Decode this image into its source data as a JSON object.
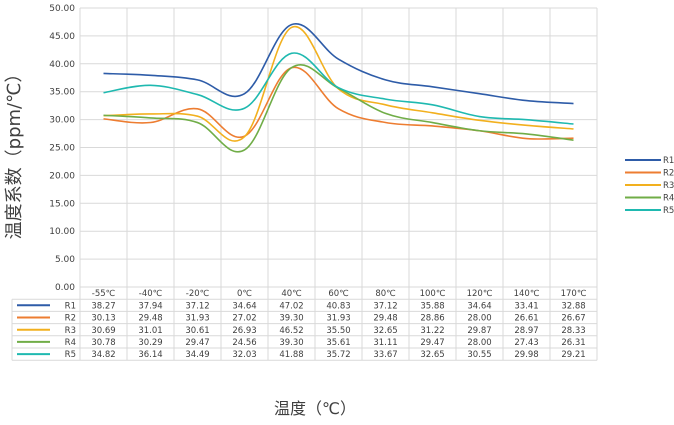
{
  "chart_data": {
    "type": "line",
    "xlabel": "温度（℃）",
    "ylabel": "温度系数（ppm/℃）",
    "categories": [
      "-55℃",
      "-40℃",
      "-20℃",
      "0℃",
      "40℃",
      "60℃",
      "80℃",
      "100℃",
      "120℃",
      "140℃",
      "170℃"
    ],
    "ylim": [
      0,
      50
    ],
    "yticks": [
      "0.00",
      "5.00",
      "10.00",
      "15.00",
      "20.00",
      "25.00",
      "30.00",
      "35.00",
      "40.00",
      "45.00",
      "50.00"
    ],
    "grid": true,
    "legend_position": "right",
    "series": [
      {
        "name": "R1",
        "color": "#2e5ca8",
        "values": [
          38.27,
          37.94,
          37.12,
          34.64,
          47.02,
          40.83,
          37.12,
          35.88,
          34.64,
          33.41,
          32.88
        ]
      },
      {
        "name": "R2",
        "color": "#ed7d31",
        "values": [
          30.13,
          29.48,
          31.93,
          27.02,
          39.3,
          31.93,
          29.48,
          28.86,
          28.0,
          26.61,
          26.67
        ]
      },
      {
        "name": "R3",
        "color": "#f2b01e",
        "values": [
          30.69,
          31.01,
          30.61,
          26.93,
          46.52,
          35.5,
          32.65,
          31.22,
          29.87,
          28.97,
          28.33
        ]
      },
      {
        "name": "R4",
        "color": "#70ad47",
        "values": [
          30.78,
          30.29,
          29.47,
          24.56,
          39.3,
          35.61,
          31.11,
          29.47,
          28.0,
          27.43,
          26.31
        ]
      },
      {
        "name": "R5",
        "color": "#1fb9b0",
        "values": [
          34.82,
          36.14,
          34.49,
          32.03,
          41.88,
          35.72,
          33.67,
          32.65,
          30.55,
          29.98,
          29.21
        ]
      }
    ],
    "table_values": [
      [
        "38.27",
        "37.94",
        "37.12",
        "34.64",
        "47.02",
        "40.83",
        "37.12",
        "35.88",
        "34.64",
        "33.41",
        "32.88"
      ],
      [
        "30.13",
        "29.48",
        "31.93",
        "27.02",
        "39.30",
        "31.93",
        "29.48",
        "28.86",
        "28.00",
        "26.61",
        "26.67"
      ],
      [
        "30.69",
        "31.01",
        "30.61",
        "26.93",
        "46.52",
        "35.50",
        "32.65",
        "31.22",
        "29.87",
        "28.97",
        "28.33"
      ],
      [
        "30.78",
        "30.29",
        "29.47",
        "24.56",
        "39.30",
        "35.61",
        "31.11",
        "29.47",
        "28.00",
        "27.43",
        "26.31"
      ],
      [
        "34.82",
        "36.14",
        "34.49",
        "32.03",
        "41.88",
        "35.72",
        "33.67",
        "32.65",
        "30.55",
        "29.98",
        "29.21"
      ]
    ]
  }
}
